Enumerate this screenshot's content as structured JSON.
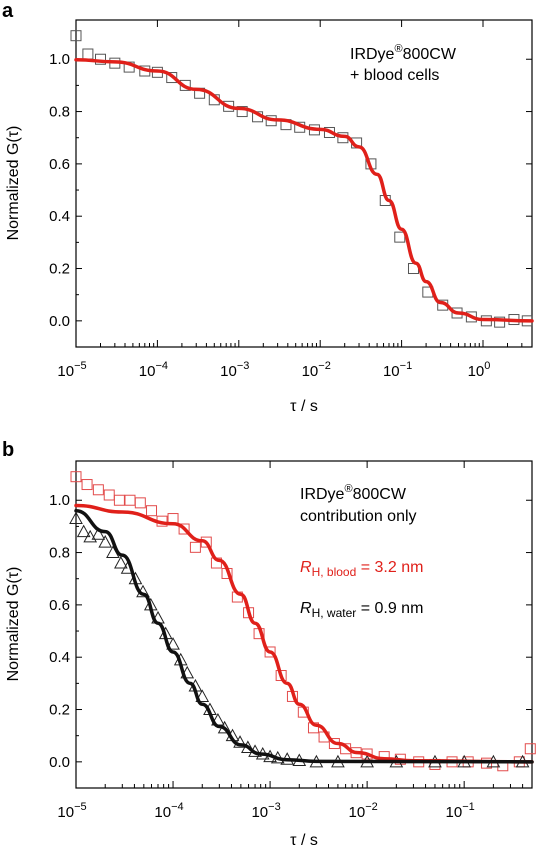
{
  "chart_data": [
    {
      "panel_label": "a",
      "type": "scatter",
      "xscale": "log",
      "xlim": [
        1e-05,
        4
      ],
      "ylim": [
        -0.1,
        1.15
      ],
      "xlabel": "τ / s",
      "ylabel": "Normalized G(τ)",
      "yticks": [
        "0.0",
        "0.2",
        "0.4",
        "0.6",
        "0.8",
        "1.0"
      ],
      "ytick_values": [
        0.0,
        0.2,
        0.4,
        0.6,
        0.8,
        1.0
      ],
      "xtick_exponents": [
        "−5",
        "−4",
        "−3",
        "−2",
        "−1",
        "0"
      ],
      "xtick_values": [
        1e-05,
        0.0001,
        0.001,
        0.01,
        0.1,
        1
      ],
      "annotation": {
        "line1": "IRDye",
        "line1_sup": "®",
        "line1_tail": "800CW",
        "line2": "+ blood cells"
      },
      "series": [
        {
          "kind": "markers",
          "marker": "square",
          "color": "#555555",
          "points": [
            [
              1e-05,
              1.09
            ],
            [
              1.4e-05,
              1.02
            ],
            [
              2e-05,
              1.0
            ],
            [
              3e-05,
              0.985
            ],
            [
              4.5e-05,
              0.97
            ],
            [
              7e-05,
              0.955
            ],
            [
              0.0001,
              0.95
            ],
            [
              0.00015,
              0.93
            ],
            [
              0.00022,
              0.9
            ],
            [
              0.00033,
              0.87
            ],
            [
              0.0005,
              0.845
            ],
            [
              0.00075,
              0.82
            ],
            [
              0.0011,
              0.8
            ],
            [
              0.0017,
              0.78
            ],
            [
              0.0025,
              0.765
            ],
            [
              0.0038,
              0.75
            ],
            [
              0.0056,
              0.74
            ],
            [
              0.0085,
              0.73
            ],
            [
              0.013,
              0.72
            ],
            [
              0.019,
              0.7
            ],
            [
              0.028,
              0.68
            ],
            [
              0.042,
              0.6
            ],
            [
              0.063,
              0.46
            ],
            [
              0.095,
              0.32
            ],
            [
              0.14,
              0.2
            ],
            [
              0.21,
              0.11
            ],
            [
              0.32,
              0.06
            ],
            [
              0.48,
              0.03
            ],
            [
              0.72,
              0.015
            ],
            [
              1.1,
              0.0
            ],
            [
              1.6,
              -0.005
            ],
            [
              2.4,
              0.005
            ],
            [
              3.5,
              0.0
            ]
          ]
        },
        {
          "kind": "fit",
          "color": "#e0201a",
          "points": [
            [
              1e-05,
              0.998
            ],
            [
              3e-05,
              0.99
            ],
            [
              0.0001,
              0.955
            ],
            [
              0.0003,
              0.885
            ],
            [
              0.001,
              0.812
            ],
            [
              0.003,
              0.768
            ],
            [
              0.01,
              0.732
            ],
            [
              0.02,
              0.705
            ],
            [
              0.03,
              0.665
            ],
            [
              0.05,
              0.56
            ],
            [
              0.07,
              0.46
            ],
            [
              0.1,
              0.35
            ],
            [
              0.15,
              0.22
            ],
            [
              0.2,
              0.15
            ],
            [
              0.3,
              0.07
            ],
            [
              0.5,
              0.03
            ],
            [
              1.0,
              0.005
            ],
            [
              4.0,
              0.0
            ]
          ]
        }
      ]
    },
    {
      "panel_label": "b",
      "type": "scatter",
      "xscale": "log",
      "xlim": [
        1e-05,
        0.5
      ],
      "ylim": [
        -0.1,
        1.15
      ],
      "xlabel": "τ / s",
      "ylabel": "Normalized G(τ)",
      "yticks": [
        "0.0",
        "0.2",
        "0.4",
        "0.6",
        "0.8",
        "1.0"
      ],
      "ytick_values": [
        0.0,
        0.2,
        0.4,
        0.6,
        0.8,
        1.0
      ],
      "xtick_exponents": [
        "−5",
        "−4",
        "−3",
        "−2",
        "−1"
      ],
      "xtick_values": [
        1e-05,
        0.0001,
        0.001,
        0.01,
        0.1
      ],
      "annotation": {
        "line1": "IRDye",
        "line1_sup": "®",
        "line1_tail": "800CW",
        "line2": "contribution only",
        "blood_R": "R",
        "blood_sub": "H, blood",
        "blood_val": " = 3.2 nm",
        "water_R": "R",
        "water_sub": "H, water",
        "water_val": " = 0.9 nm"
      },
      "series": [
        {
          "kind": "markers",
          "marker": "square",
          "color": "#e24b4b",
          "points": [
            [
              1e-05,
              1.09
            ],
            [
              1.3e-05,
              1.06
            ],
            [
              1.7e-05,
              1.04
            ],
            [
              2.2e-05,
              1.02
            ],
            [
              2.8e-05,
              1.0
            ],
            [
              3.6e-05,
              1.0
            ],
            [
              4.6e-05,
              0.99
            ],
            [
              6e-05,
              0.96
            ],
            [
              7.7e-05,
              0.92
            ],
            [
              0.0001,
              0.93
            ],
            [
              0.00013,
              0.89
            ],
            [
              0.00017,
              0.82
            ],
            [
              0.00022,
              0.84
            ],
            [
              0.00028,
              0.76
            ],
            [
              0.00036,
              0.72
            ],
            [
              0.00046,
              0.63
            ],
            [
              0.0006,
              0.57
            ],
            [
              0.00077,
              0.49
            ],
            [
              0.001,
              0.42
            ],
            [
              0.0013,
              0.33
            ],
            [
              0.0017,
              0.25
            ],
            [
              0.0022,
              0.19
            ],
            [
              0.0028,
              0.13
            ],
            [
              0.0036,
              0.095
            ],
            [
              0.0046,
              0.07
            ],
            [
              0.006,
              0.05
            ],
            [
              0.0077,
              0.035
            ],
            [
              0.01,
              0.03
            ],
            [
              0.015,
              0.02
            ],
            [
              0.022,
              0.01
            ],
            [
              0.034,
              0.0
            ],
            [
              0.05,
              -0.01
            ],
            [
              0.075,
              0.0
            ],
            [
              0.11,
              0.0
            ],
            [
              0.17,
              -0.005
            ],
            [
              0.25,
              -0.015
            ],
            [
              0.37,
              0.0
            ],
            [
              0.48,
              0.05
            ]
          ]
        },
        {
          "kind": "fit",
          "color": "#e0201a",
          "name": "blood",
          "points": [
            [
              1e-05,
              0.98
            ],
            [
              3e-05,
              0.955
            ],
            [
              0.0001,
              0.91
            ],
            [
              0.0002,
              0.845
            ],
            [
              0.0003,
              0.77
            ],
            [
              0.0005,
              0.64
            ],
            [
              0.0007,
              0.53
            ],
            [
              0.001,
              0.42
            ],
            [
              0.0015,
              0.3
            ],
            [
              0.002,
              0.22
            ],
            [
              0.003,
              0.14
            ],
            [
              0.005,
              0.07
            ],
            [
              0.008,
              0.035
            ],
            [
              0.015,
              0.012
            ],
            [
              0.03,
              0.004
            ],
            [
              0.5,
              0.0
            ]
          ]
        },
        {
          "kind": "markers",
          "marker": "triangle",
          "color": "#222222",
          "points": [
            [
              1e-05,
              0.93
            ],
            [
              1.2e-05,
              0.88
            ],
            [
              1.4e-05,
              0.86
            ],
            [
              1.7e-05,
              0.87
            ],
            [
              2e-05,
              0.84
            ],
            [
              2.4e-05,
              0.8
            ],
            [
              2.9e-05,
              0.76
            ],
            [
              3.4e-05,
              0.74
            ],
            [
              4.1e-05,
              0.7
            ],
            [
              4.9e-05,
              0.65
            ],
            [
              5.9e-05,
              0.6
            ],
            [
              7e-05,
              0.55
            ],
            [
              8.4e-05,
              0.49
            ],
            [
              0.0001,
              0.45
            ],
            [
              0.00012,
              0.39
            ],
            [
              0.00014,
              0.34
            ],
            [
              0.00017,
              0.29
            ],
            [
              0.0002,
              0.25
            ],
            [
              0.00024,
              0.2
            ],
            [
              0.00029,
              0.16
            ],
            [
              0.00034,
              0.13
            ],
            [
              0.00041,
              0.1
            ],
            [
              0.00049,
              0.075
            ],
            [
              0.00059,
              0.055
            ],
            [
              0.0007,
              0.04
            ],
            [
              0.00084,
              0.03
            ],
            [
              0.001,
              0.02
            ],
            [
              0.0012,
              0.015
            ],
            [
              0.0015,
              0.01
            ],
            [
              0.002,
              0.005
            ],
            [
              0.003,
              0.0
            ],
            [
              0.005,
              0.0
            ],
            [
              0.01,
              0.0
            ],
            [
              0.02,
              0.0
            ],
            [
              0.05,
              0.0
            ],
            [
              0.1,
              0.0
            ],
            [
              0.2,
              0.0
            ],
            [
              0.4,
              0.0
            ]
          ]
        },
        {
          "kind": "fit",
          "color": "#111111",
          "name": "water",
          "points": [
            [
              1e-05,
              0.96
            ],
            [
              2e-05,
              0.88
            ],
            [
              3e-05,
              0.79
            ],
            [
              5e-05,
              0.64
            ],
            [
              7e-05,
              0.53
            ],
            [
              0.0001,
              0.42
            ],
            [
              0.00015,
              0.3
            ],
            [
              0.0002,
              0.22
            ],
            [
              0.0003,
              0.135
            ],
            [
              0.0005,
              0.065
            ],
            [
              0.0008,
              0.03
            ],
            [
              0.0015,
              0.008
            ],
            [
              0.003,
              0.002
            ],
            [
              0.5,
              0.0
            ]
          ]
        }
      ]
    }
  ]
}
